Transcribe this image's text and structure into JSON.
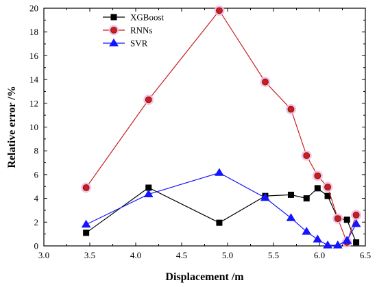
{
  "chart_data": {
    "type": "line",
    "title": "",
    "xlabel": "Displacement /m",
    "ylabel": "Relative error /%",
    "xlim": [
      3.0,
      6.5
    ],
    "ylim": [
      0,
      20
    ],
    "xticks": [
      3.0,
      3.5,
      4.0,
      4.5,
      5.0,
      5.5,
      6.0,
      6.5
    ],
    "yticks": [
      0,
      2,
      4,
      6,
      8,
      10,
      12,
      14,
      16,
      18,
      20
    ],
    "xtick_labels": [
      "3.0",
      "3.5",
      "4.0",
      "4.5",
      "5.0",
      "5.5",
      "6.0",
      "6.5"
    ],
    "ytick_labels": [
      "0",
      "2",
      "4",
      "6",
      "8",
      "10",
      "12",
      "14",
      "16",
      "18",
      "20"
    ],
    "grid": false,
    "legend_position": "top-left",
    "series": [
      {
        "name": "XGBoost",
        "color": "#000000",
        "marker": "square",
        "x": [
          3.46,
          4.14,
          4.91,
          5.41,
          5.69,
          5.86,
          5.98,
          6.09,
          6.2,
          6.3,
          6.4
        ],
        "y": [
          1.1,
          4.9,
          1.95,
          4.2,
          4.3,
          4.0,
          4.85,
          4.2,
          2.3,
          2.2,
          0.3
        ]
      },
      {
        "name": "RNNs",
        "color": "#c81e1e",
        "marker": "circle",
        "x": [
          3.46,
          4.14,
          4.91,
          5.41,
          5.69,
          5.86,
          5.98,
          6.09,
          6.2,
          6.3,
          6.4
        ],
        "y": [
          4.9,
          12.3,
          19.8,
          13.8,
          11.5,
          7.6,
          5.9,
          4.95,
          2.3,
          0.3,
          2.6
        ]
      },
      {
        "name": "SVR",
        "color": "#1414ff",
        "marker": "triangle",
        "x": [
          3.46,
          4.14,
          4.91,
          5.41,
          5.69,
          5.86,
          5.98,
          6.09,
          6.2,
          6.3,
          6.4
        ],
        "y": [
          1.8,
          4.35,
          6.15,
          4.05,
          2.35,
          1.2,
          0.55,
          0.05,
          0.05,
          0.45,
          1.85
        ]
      }
    ]
  }
}
